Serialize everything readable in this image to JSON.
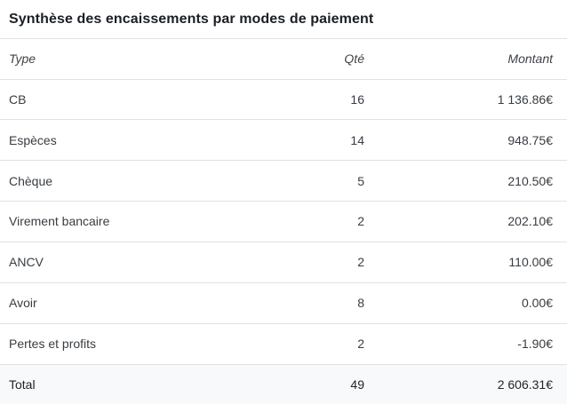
{
  "panel": {
    "title": "Synthèse des encaissements par modes de paiement"
  },
  "table": {
    "headers": {
      "type": "Type",
      "qty": "Qté",
      "amount": "Montant"
    },
    "rows": [
      {
        "type": "CB",
        "qty": "16",
        "amount": "1 136.86€"
      },
      {
        "type": "Espèces",
        "qty": "14",
        "amount": "948.75€"
      },
      {
        "type": "Chèque",
        "qty": "5",
        "amount": "210.50€"
      },
      {
        "type": "Virement bancaire",
        "qty": "2",
        "amount": "202.10€"
      },
      {
        "type": "ANCV",
        "qty": "2",
        "amount": "110.00€"
      },
      {
        "type": "Avoir",
        "qty": "8",
        "amount": "0.00€"
      },
      {
        "type": "Pertes et profits",
        "qty": "2",
        "amount": "-1.90€"
      }
    ],
    "total": {
      "label": "Total",
      "qty": "49",
      "amount": "2 606.31€"
    }
  },
  "colors": {
    "divider": "#dee2e6",
    "total_row_background": "#f8f9fa",
    "title_text": "#1b1f23",
    "body_text": "#383d42"
  },
  "chart_data": {
    "type": "table",
    "title": "Synthèse des encaissements par modes de paiement",
    "categories": [
      "CB",
      "Espèces",
      "Chèque",
      "Virement bancaire",
      "ANCV",
      "Avoir",
      "Pertes et profits"
    ],
    "series": [
      {
        "name": "Qté",
        "values": [
          16,
          14,
          5,
          2,
          2,
          8,
          2
        ]
      },
      {
        "name": "Montant",
        "values": [
          1136.86,
          948.75,
          210.5,
          202.1,
          110.0,
          0.0,
          -1.9
        ]
      }
    ],
    "total": {
      "qty": 49,
      "montant": 2606.31
    }
  }
}
